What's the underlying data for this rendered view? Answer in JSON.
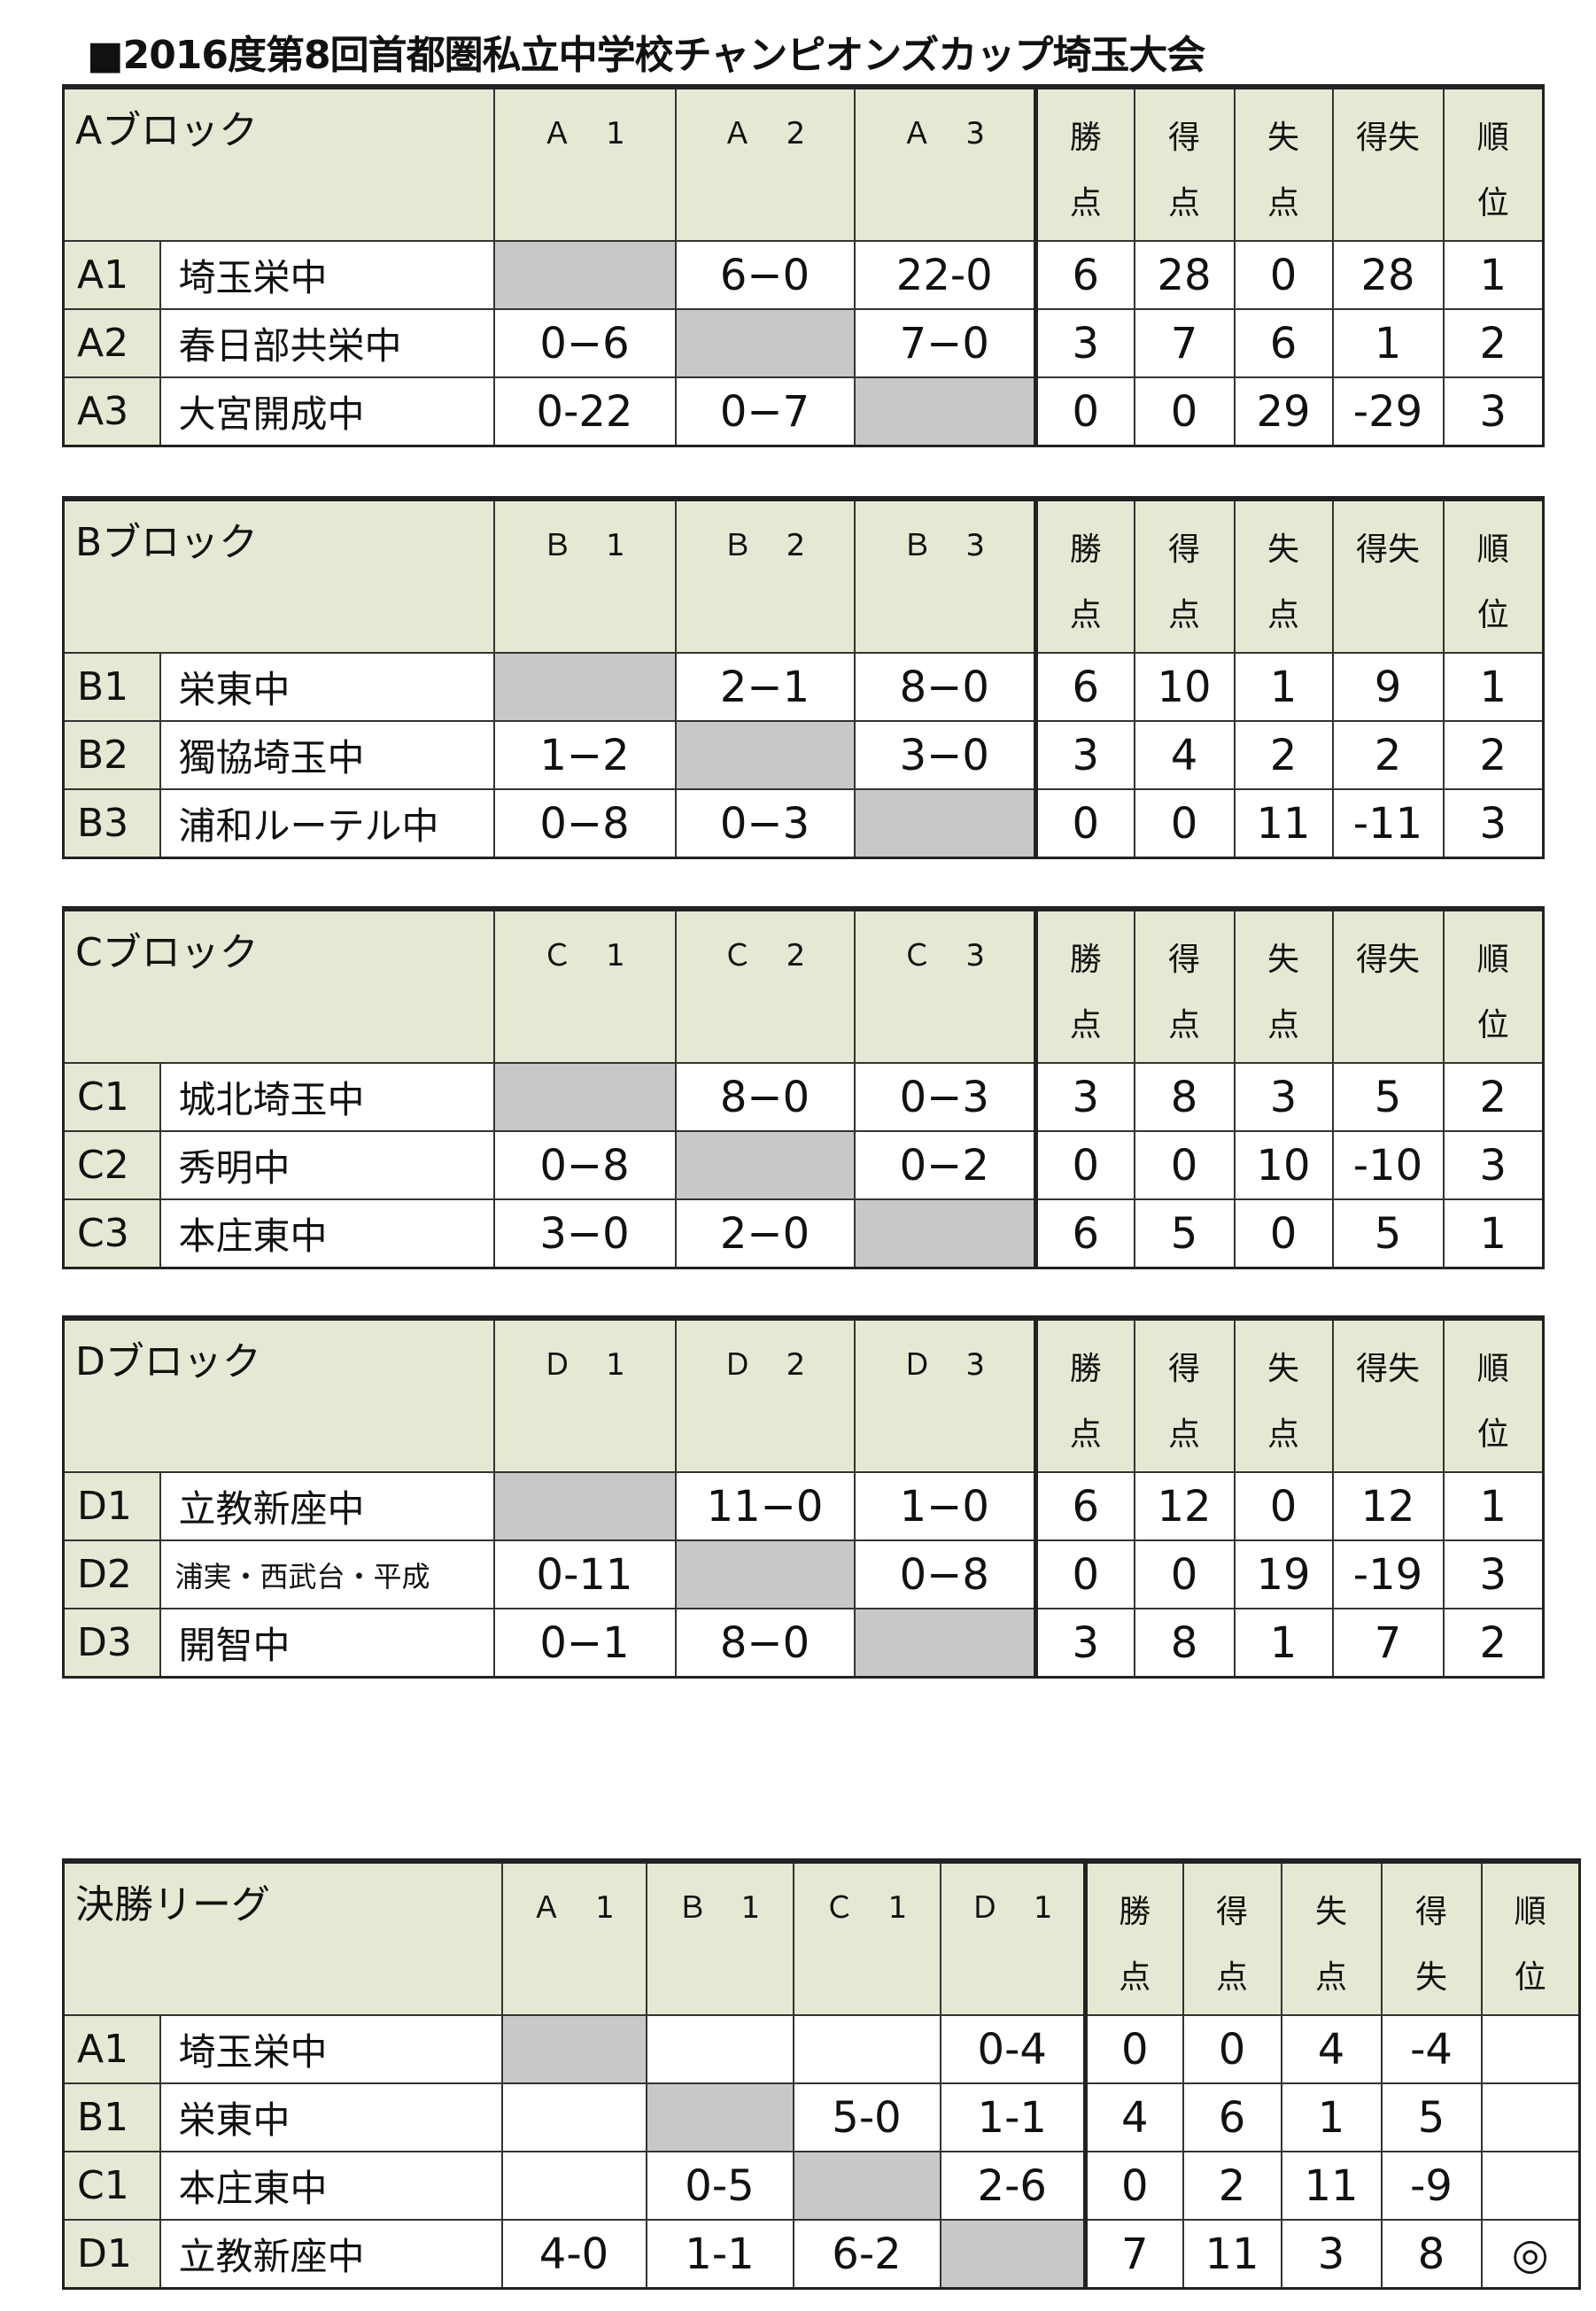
{
  "title": "■2016度第8回首都圏私立中学校チャンピオンズカップ埼玉大会",
  "blocks": [
    {
      "label": "Aブロック",
      "opponents": [
        "Ａ　1",
        "Ａ　2",
        "Ａ　3"
      ],
      "stat_headers": [
        [
          "勝",
          "点"
        ],
        [
          "得",
          "点"
        ],
        [
          "失",
          "点"
        ],
        [
          "得失",
          ""
        ],
        [
          "順",
          "位"
        ]
      ],
      "rows": [
        {
          "code": "A1",
          "name": "埼玉栄中",
          "scores": [
            "",
            "6−0",
            "22-0"
          ],
          "stats": [
            "6",
            "28",
            "0",
            "28",
            "1"
          ]
        },
        {
          "code": "A2",
          "name": "春日部共栄中",
          "scores": [
            "0−6",
            "",
            "7−0"
          ],
          "stats": [
            "3",
            "7",
            "6",
            "1",
            "2"
          ]
        },
        {
          "code": "A3",
          "name": "大宮開成中",
          "scores": [
            "0-22",
            "0−7",
            ""
          ],
          "stats": [
            "0",
            "0",
            "29",
            "-29",
            "3"
          ]
        }
      ]
    },
    {
      "label": "Bブロック",
      "opponents": [
        "Ｂ　1",
        "Ｂ　2",
        "Ｂ　3"
      ],
      "stat_headers": [
        [
          "勝",
          "点"
        ],
        [
          "得",
          "点"
        ],
        [
          "失",
          "点"
        ],
        [
          "得失",
          ""
        ],
        [
          "順",
          "位"
        ]
      ],
      "rows": [
        {
          "code": "B1",
          "name": "栄東中",
          "scores": [
            "",
            "2−1",
            "8−0"
          ],
          "stats": [
            "6",
            "10",
            "1",
            "9",
            "1"
          ]
        },
        {
          "code": "B2",
          "name": "獨協埼玉中",
          "scores": [
            "1−2",
            "",
            "3−0"
          ],
          "stats": [
            "3",
            "4",
            "2",
            "2",
            "2"
          ]
        },
        {
          "code": "B3",
          "name": "浦和ルーテル中",
          "scores": [
            "0−8",
            "0−3",
            ""
          ],
          "stats": [
            "0",
            "0",
            "11",
            "-11",
            "3"
          ]
        }
      ]
    },
    {
      "label": "Cブロック",
      "opponents": [
        "Ｃ　1",
        "Ｃ　2",
        "Ｃ　3"
      ],
      "stat_headers": [
        [
          "勝",
          "点"
        ],
        [
          "得",
          "点"
        ],
        [
          "失",
          "点"
        ],
        [
          "得失",
          ""
        ],
        [
          "順",
          "位"
        ]
      ],
      "rows": [
        {
          "code": "C1",
          "name": "城北埼玉中",
          "scores": [
            "",
            "8−0",
            "0−3"
          ],
          "stats": [
            "3",
            "8",
            "3",
            "5",
            "2"
          ]
        },
        {
          "code": "C2",
          "name": "秀明中",
          "scores": [
            "0−8",
            "",
            "0−2"
          ],
          "stats": [
            "0",
            "0",
            "10",
            "-10",
            "3"
          ]
        },
        {
          "code": "C3",
          "name": "本庄東中",
          "scores": [
            "3−0",
            "2−0",
            ""
          ],
          "stats": [
            "6",
            "5",
            "0",
            "5",
            "1"
          ]
        }
      ]
    },
    {
      "label": "Dブロック",
      "opponents": [
        "Ｄ　1",
        "Ｄ　2",
        "Ｄ　3"
      ],
      "stat_headers": [
        [
          "勝",
          "点"
        ],
        [
          "得",
          "点"
        ],
        [
          "失",
          "点"
        ],
        [
          "得失",
          ""
        ],
        [
          "順",
          "位"
        ]
      ],
      "rows": [
        {
          "code": "D1",
          "name": "立教新座中",
          "scores": [
            "",
            "11−0",
            "1−0"
          ],
          "stats": [
            "6",
            "12",
            "0",
            "12",
            "1"
          ]
        },
        {
          "code": "D2",
          "name": "浦実・西武台・平成",
          "scores": [
            "0-11",
            "",
            "0−8"
          ],
          "stats": [
            "0",
            "0",
            "19",
            "-19",
            "3"
          ]
        },
        {
          "code": "D3",
          "name": "開智中",
          "scores": [
            "0−1",
            "8−0",
            ""
          ],
          "stats": [
            "3",
            "8",
            "1",
            "7",
            "2"
          ]
        }
      ]
    }
  ],
  "final": {
    "label": "決勝リーグ",
    "opponents": [
      "Ａ　1",
      "Ｂ　1",
      "Ｃ　1",
      "Ｄ　1"
    ],
    "stat_headers": [
      [
        "勝",
        "点"
      ],
      [
        "得",
        "点"
      ],
      [
        "失",
        "点"
      ],
      [
        "得",
        "失"
      ],
      [
        "順",
        "位"
      ]
    ],
    "rows": [
      {
        "code": "A1",
        "name": "埼玉栄中",
        "scores": [
          "",
          "",
          "",
          "0-4"
        ],
        "stats": [
          "0",
          "0",
          "4",
          "-4",
          ""
        ]
      },
      {
        "code": "B1",
        "name": "栄東中",
        "scores": [
          "",
          "",
          "5-0",
          "1-1"
        ],
        "stats": [
          "4",
          "6",
          "1",
          "5",
          ""
        ]
      },
      {
        "code": "C1",
        "name": "本庄東中",
        "scores": [
          "",
          "0-5",
          "",
          "2-6"
        ],
        "stats": [
          "0",
          "2",
          "11",
          "-9",
          ""
        ]
      },
      {
        "code": "D1",
        "name": "立教新座中",
        "scores": [
          "4-0",
          "1-1",
          "6-2",
          ""
        ],
        "stats": [
          "7",
          "11",
          "3",
          "8",
          "◎"
        ]
      }
    ]
  },
  "colors": {
    "header_bg": "#e6e8d3",
    "self_cell": "#c8c8c8"
  }
}
